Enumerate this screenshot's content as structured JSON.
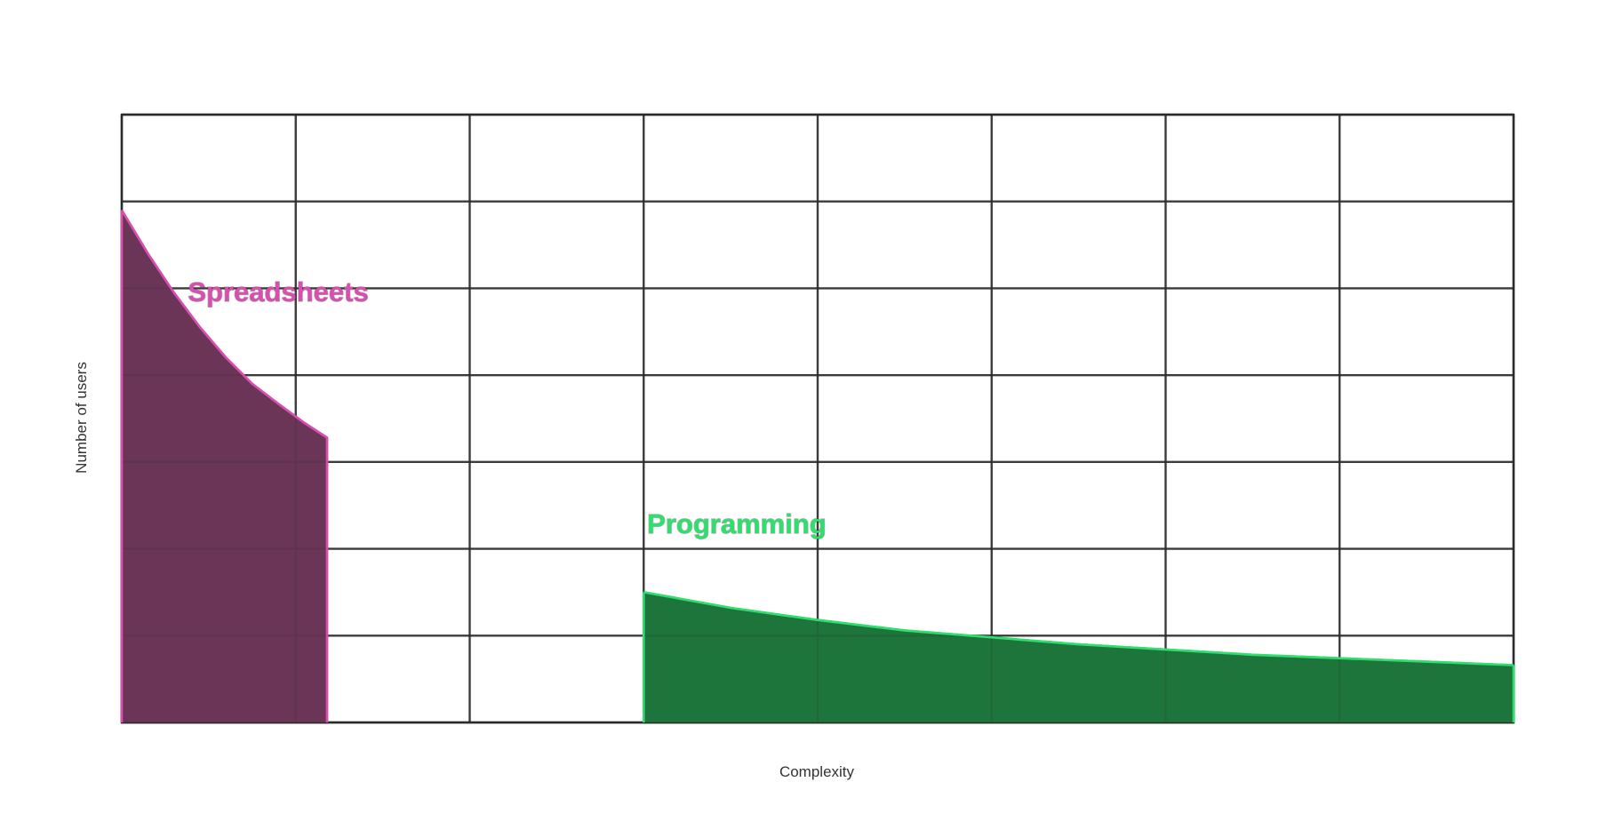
{
  "chart_data": {
    "type": "area",
    "title": "",
    "xlabel": "Complexity",
    "ylabel": "Number of users",
    "xlim": [
      0,
      8
    ],
    "ylim": [
      0,
      7
    ],
    "grid": true,
    "x_ticks": [
      0,
      1,
      2,
      3,
      4,
      5,
      6,
      7,
      8
    ],
    "y_ticks": [
      0,
      1,
      2,
      3,
      4,
      5,
      6,
      7
    ],
    "tick_labels_shown": false,
    "legend": "none",
    "series": [
      {
        "name": "Spreadsheets",
        "label_at": [
          0.38,
          4.85
        ],
        "fill_color": "#6b3658",
        "line_color": "#d94fb0",
        "points": [
          [
            0,
            5.9
          ],
          [
            0.15,
            5.4
          ],
          [
            0.3,
            4.95
          ],
          [
            0.45,
            4.55
          ],
          [
            0.6,
            4.2
          ],
          [
            0.75,
            3.9
          ],
          [
            0.9,
            3.67
          ],
          [
            1.05,
            3.45
          ],
          [
            1.18,
            3.28
          ]
        ]
      },
      {
        "name": "Programming",
        "label_at": [
          3.02,
          2.18
        ],
        "fill_color": "#1e753c",
        "line_color": "#2fdf6e",
        "points": [
          [
            3,
            1.5
          ],
          [
            3.5,
            1.32
          ],
          [
            4,
            1.18
          ],
          [
            4.5,
            1.06
          ],
          [
            5,
            0.98
          ],
          [
            5.5,
            0.9
          ],
          [
            6,
            0.84
          ],
          [
            6.5,
            0.78
          ],
          [
            7,
            0.74
          ],
          [
            7.5,
            0.7
          ],
          [
            8,
            0.66
          ]
        ]
      }
    ]
  }
}
